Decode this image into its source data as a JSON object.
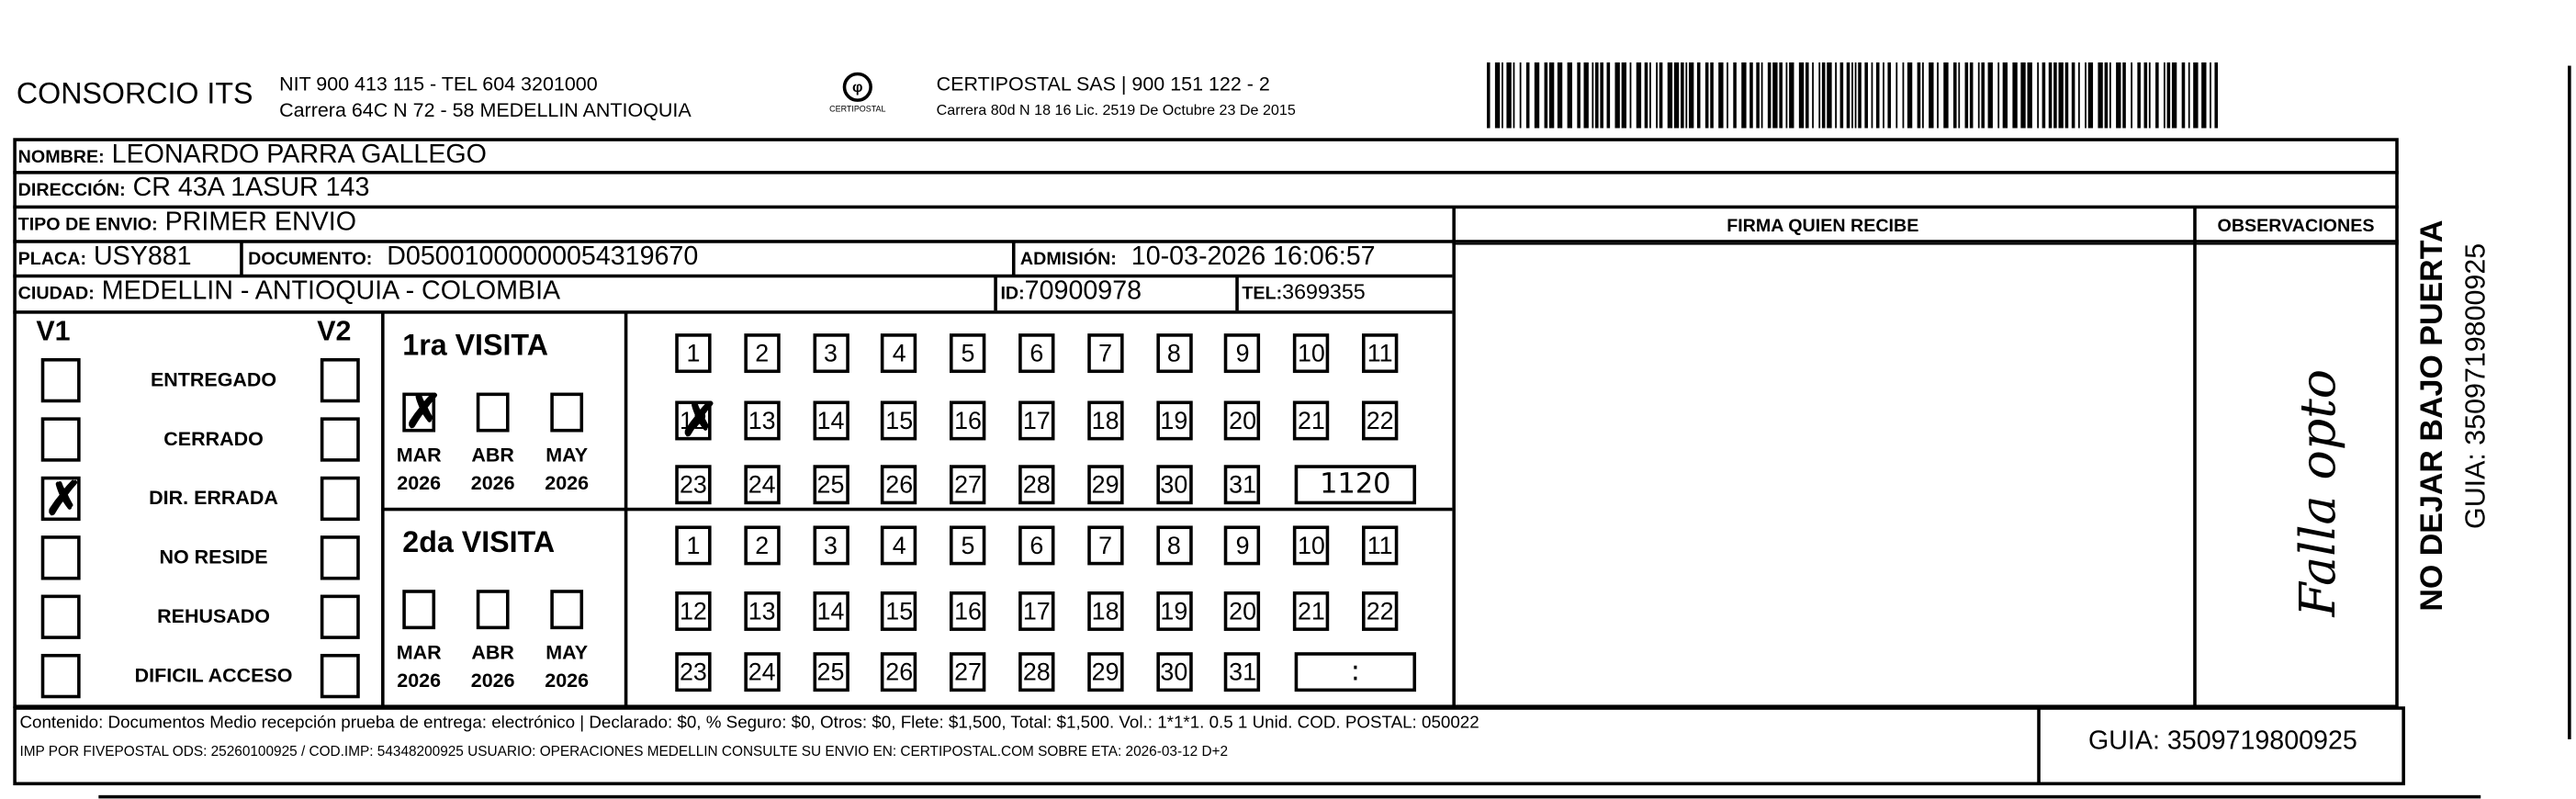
{
  "header": {
    "company": "CONSORCIO ITS",
    "nit_line": "NIT 900 413 115 - TEL 604 3201000",
    "address_line": "Carrera 64C N 72 - 58 MEDELLIN ANTIOQUIA",
    "logo_text": "CERTIPOSTAL",
    "carrier_line": "CERTIPOSTAL SAS | 900 151 122 - 2",
    "carrier_address": "Carrera 80d N 18 16  Lic. 2519 De Octubre 23 De 2015"
  },
  "recipient": {
    "nombre_label": "NOMBRE:",
    "nombre": "LEONARDO PARRA GALLEGO",
    "direccion_label": "DIRECCIÓN:",
    "direccion": "CR 43A 1ASUR 143",
    "tipo_label": "TIPO DE ENVIO:",
    "tipo": "PRIMER ENVIO",
    "placa_label": "PLACA:",
    "placa": "USY881",
    "documento_label": "DOCUMENTO:",
    "documento": "D05001000000054319670",
    "admision_label": "ADMISIÓN:",
    "admision": "10-03-2026 16:06:57",
    "ciudad_label": "CIUDAD:",
    "ciudad": "MEDELLIN - ANTIOQUIA - COLOMBIA",
    "id_label": "ID:",
    "id": "70900978",
    "tel_label": "TEL:",
    "tel": "3699355"
  },
  "columns": {
    "firma": "FIRMA QUIEN RECIBE",
    "observaciones": "OBSERVACIONES"
  },
  "status": {
    "v1_label": "V1",
    "v2_label": "V2",
    "items": [
      {
        "label": "ENTREGADO",
        "v1": false,
        "v2": false
      },
      {
        "label": "CERRADO",
        "v1": false,
        "v2": false
      },
      {
        "label": "DIR. ERRADA",
        "v1": true,
        "v2": false
      },
      {
        "label": "NO RESIDE",
        "v1": false,
        "v2": false
      },
      {
        "label": "REHUSADO",
        "v1": false,
        "v2": false
      },
      {
        "label": "DIFICIL ACCESO",
        "v1": false,
        "v2": false
      }
    ]
  },
  "visits": [
    {
      "title": "1ra VISITA",
      "months": [
        {
          "m": "MAR",
          "y": "2026",
          "checked": true
        },
        {
          "m": "ABR",
          "y": "2026",
          "checked": false
        },
        {
          "m": "MAY",
          "y": "2026",
          "checked": false
        }
      ],
      "checked_day": 12,
      "time": "1120"
    },
    {
      "title": "2da VISITA",
      "months": [
        {
          "m": "MAR",
          "y": "2026",
          "checked": false
        },
        {
          "m": "ABR",
          "y": "2026",
          "checked": false
        },
        {
          "m": "MAY",
          "y": "2026",
          "checked": false
        }
      ],
      "checked_day": null,
      "time": ":"
    }
  ],
  "footer": {
    "contenido": "Contenido: Documentos Medio recepción prueba de entrega: electrónico | Declarado: $0, % Seguro: $0, Otros: $0, Flete: $1,500, Total: $1,500. Vol.: 1*1*1. 0.5  1 Unid. COD. POSTAL: 050022",
    "imp": "IMP POR FIVEPOSTAL ODS: 25260100925 / COD.IMP: 54348200925 USUARIO: OPERACIONES MEDELLIN CONSULTE SU ENVIO EN: CERTIPOSTAL.COM SOBRE ETA: 2026-03-12 D+2",
    "guia": "GUIA: 3509719800925"
  },
  "side": {
    "warning": "NO DEJAR BAJO PUERTA",
    "guia": "GUIA: 3509719800925"
  }
}
